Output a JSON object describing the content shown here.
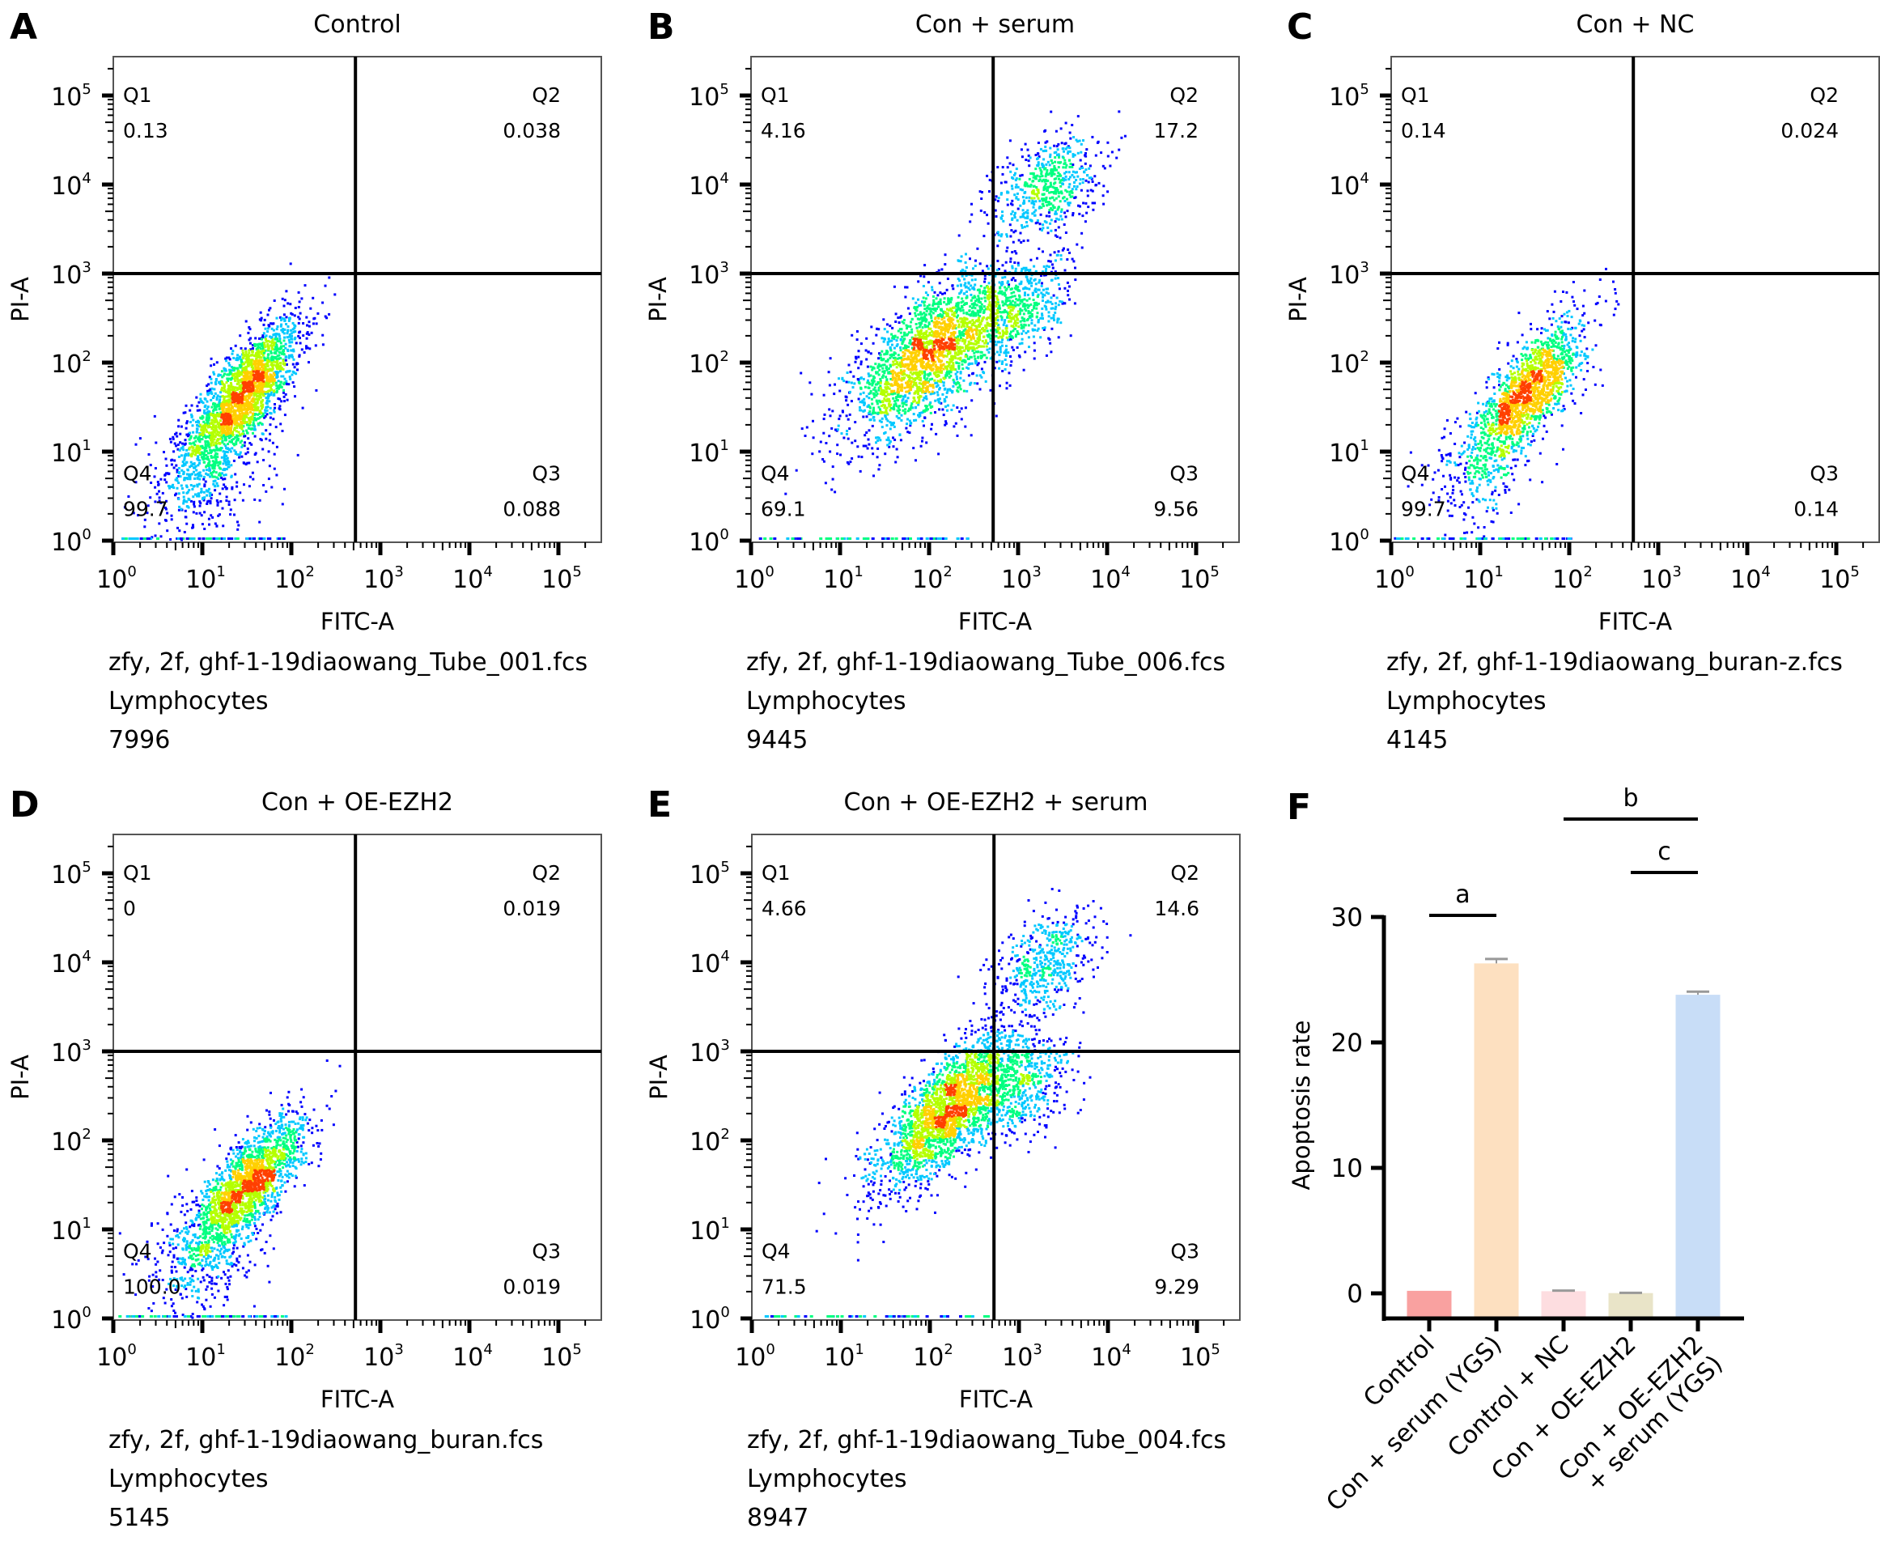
{
  "figure": {
    "panels": [
      {
        "letter": "A",
        "title": "Control",
        "x_axis_label": "FITC-A",
        "y_axis_label": "PI-A",
        "quadrants": {
          "Q1": "0.13",
          "Q2": "0.038",
          "Q3": "0.088",
          "Q4": "99.7"
        },
        "file_name": "zfy, 2f, ghf-1-19diaowang_Tube_001.fcs",
        "population": "Lymphocytes",
        "event_count": "7996",
        "scatter": {
          "n": 2600,
          "clusters": [
            {
              "x": 1.45,
              "y": 1.65,
              "sx": 0.32,
              "sy": 0.42,
              "w": 0.85,
              "corr": 0.75
            },
            {
              "x": 1.0,
              "y": 0.7,
              "sx": 0.35,
              "sy": 0.35,
              "w": 0.15,
              "corr": 0.2
            }
          ]
        }
      },
      {
        "letter": "B",
        "title": "Con + serum",
        "x_axis_label": "FITC-A",
        "y_axis_label": "PI-A",
        "quadrants": {
          "Q1": "4.16",
          "Q2": "17.2",
          "Q3": "9.56",
          "Q4": "69.1"
        },
        "file_name": "zfy, 2f, ghf-1-19diaowang_Tube_006.fcs",
        "population": "Lymphocytes",
        "event_count": "9445",
        "scatter": {
          "n": 3400,
          "clusters": [
            {
              "x": 2.0,
              "y": 2.1,
              "sx": 0.45,
              "sy": 0.45,
              "w": 0.68,
              "corr": 0.65
            },
            {
              "x": 3.3,
              "y": 4.0,
              "sx": 0.3,
              "sy": 0.3,
              "w": 0.17,
              "corr": 0.4
            },
            {
              "x": 3.0,
              "y": 2.6,
              "sx": 0.3,
              "sy": 0.3,
              "w": 0.15,
              "corr": 0.4
            }
          ]
        }
      },
      {
        "letter": "C",
        "title": "Con + NC",
        "x_axis_label": "FITC-A",
        "y_axis_label": "PI-A",
        "quadrants": {
          "Q1": "0.14",
          "Q2": "0.024",
          "Q3": "0.14",
          "Q4": "99.7"
        },
        "file_name": "zfy, 2f, ghf-1-19diaowang_buran-z.fcs",
        "population": "Lymphocytes",
        "event_count": "4145",
        "scatter": {
          "n": 1800,
          "clusters": [
            {
              "x": 1.55,
              "y": 1.7,
              "sx": 0.3,
              "sy": 0.4,
              "w": 0.85,
              "corr": 0.75
            },
            {
              "x": 1.0,
              "y": 0.8,
              "sx": 0.3,
              "sy": 0.35,
              "w": 0.15,
              "corr": 0.2
            }
          ]
        }
      },
      {
        "letter": "D",
        "title": "Con + OE-EZH2",
        "x_axis_label": "FITC-A",
        "y_axis_label": "PI-A",
        "quadrants": {
          "Q1": "0",
          "Q2": "0.019",
          "Q3": "0.019",
          "Q4": "100.0"
        },
        "file_name": "zfy, 2f, ghf-1-19diaowang_buran.fcs",
        "population": "Lymphocytes",
        "event_count": "5145",
        "scatter": {
          "n": 2200,
          "clusters": [
            {
              "x": 1.5,
              "y": 1.5,
              "sx": 0.32,
              "sy": 0.38,
              "w": 0.85,
              "corr": 0.75
            },
            {
              "x": 1.0,
              "y": 0.7,
              "sx": 0.3,
              "sy": 0.35,
              "w": 0.15,
              "corr": 0.2
            }
          ]
        }
      },
      {
        "letter": "E",
        "title": "Con + OE-EZH2 + serum",
        "x_axis_label": "FITC-A",
        "y_axis_label": "PI-A",
        "quadrants": {
          "Q1": "4.66",
          "Q2": "14.6",
          "Q3": "9.29",
          "Q4": "71.5"
        },
        "file_name": "zfy, 2f, ghf-1-19diaowang_Tube_004.fcs",
        "population": "Lymphocytes",
        "event_count": "8947",
        "scatter": {
          "n": 3300,
          "clusters": [
            {
              "x": 2.2,
              "y": 2.35,
              "sx": 0.4,
              "sy": 0.45,
              "w": 0.7,
              "corr": 0.75
            },
            {
              "x": 3.3,
              "y": 4.0,
              "sx": 0.28,
              "sy": 0.3,
              "w": 0.15,
              "corr": 0.4
            },
            {
              "x": 3.0,
              "y": 2.6,
              "sx": 0.3,
              "sy": 0.3,
              "w": 0.15,
              "corr": 0.4
            }
          ]
        }
      }
    ],
    "flow_axis": {
      "ticks": [
        {
          "base": "10",
          "exp": "0",
          "value": 0
        },
        {
          "base": "10",
          "exp": "1",
          "value": 1
        },
        {
          "base": "10",
          "exp": "2",
          "value": 2
        },
        {
          "base": "10",
          "exp": "3",
          "value": 3
        },
        {
          "base": "10",
          "exp": "4",
          "value": 4
        },
        {
          "base": "10",
          "exp": "5",
          "value": 5
        }
      ],
      "log_range": [
        0,
        5.45
      ],
      "gate_x_log": 2.72,
      "gate_y_log": 3.0
    },
    "density_colors": [
      "#0000ff",
      "#00c8ff",
      "#00ff80",
      "#b4ff00",
      "#ffd000",
      "#ff4000"
    ]
  },
  "chart_data": {
    "type": "bar",
    "panel_letter": "F",
    "title": "",
    "xlabel": "",
    "ylabel": "Apoptosis rate",
    "ylim": [
      -2,
      30
    ],
    "yticks": [
      0,
      10,
      20,
      30
    ],
    "grid": false,
    "categories": [
      "Control",
      "Con + serum (YGS)",
      "Control + NC",
      "Con + OE-EZH2",
      "Con + OE-EZH2\n+ serum (YGS)"
    ],
    "values": [
      0.2,
      26.3,
      0.17,
      0.02,
      23.8
    ],
    "errors": [
      0.0,
      0.35,
      0.05,
      0.02,
      0.25
    ],
    "colors": [
      "#F9A1A0",
      "#FDE0C0",
      "#FDDDE0",
      "#E9E4C8",
      "#C8DDF7"
    ],
    "significance": [
      {
        "label": "a",
        "from": 0,
        "to": 1
      },
      {
        "label": "b",
        "from": 2,
        "to": 4
      },
      {
        "label": "c",
        "from": 3,
        "to": 4
      }
    ]
  }
}
